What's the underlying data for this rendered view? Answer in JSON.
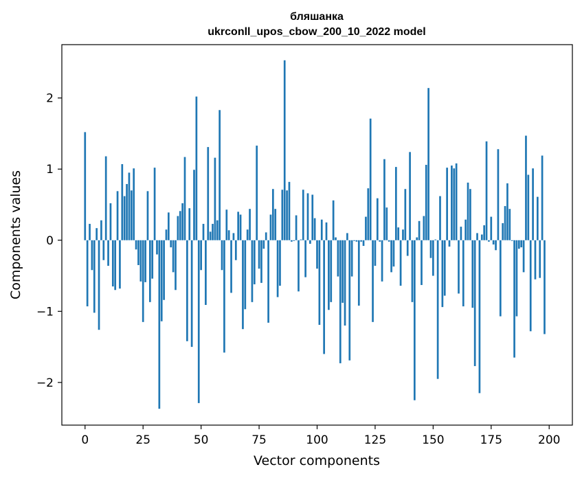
{
  "chart_data": {
    "type": "bar",
    "title": [
      "бляшанка",
      "ukrconll_upos_cbow_200_10_2022 model"
    ],
    "xlabel": "Vector components",
    "ylabel": "Components values",
    "xlim": [
      -10,
      210
    ],
    "ylim": [
      -2.6,
      2.75
    ],
    "xticks": [
      0,
      25,
      50,
      75,
      100,
      125,
      150,
      175,
      200
    ],
    "yticks": [
      -2,
      -1,
      0,
      1,
      2
    ],
    "bar_color": "#1f77b4",
    "grid": false,
    "values": [
      1.52,
      -0.93,
      0.23,
      -0.42,
      -1.02,
      0.17,
      -1.26,
      0.28,
      -0.28,
      1.18,
      -0.36,
      0.52,
      -0.65,
      -0.7,
      0.69,
      -0.68,
      1.07,
      0.62,
      0.79,
      0.95,
      0.7,
      1.01,
      -0.13,
      -0.35,
      -0.58,
      -1.15,
      -0.59,
      0.69,
      -0.87,
      -0.54,
      1.02,
      -0.2,
      -2.37,
      -1.14,
      -0.84,
      0.15,
      0.39,
      -0.1,
      -0.45,
      -0.7,
      0.34,
      0.41,
      0.52,
      1.17,
      -1.42,
      0.45,
      -1.5,
      0.99,
      2.02,
      -2.29,
      -0.42,
      0.23,
      -0.91,
      1.31,
      0.12,
      0.23,
      1.16,
      0.28,
      1.83,
      -0.42,
      -1.58,
      0.43,
      0.14,
      -0.74,
      0.1,
      -0.28,
      0.4,
      0.36,
      -1.25,
      -0.97,
      0.15,
      0.44,
      -0.87,
      -0.62,
      1.33,
      -0.4,
      -0.6,
      -0.12,
      0.11,
      -1.16,
      0.36,
      0.72,
      0.44,
      -0.8,
      -0.64,
      0.71,
      2.53,
      0.7,
      0.82,
      -0.02,
      -0.01,
      0.35,
      -0.72,
      0.01,
      0.71,
      -0.52,
      0.66,
      -0.05,
      0.64,
      0.31,
      -0.4,
      -1.19,
      0.29,
      -1.6,
      0.25,
      -0.98,
      -0.87,
      0.56,
      0.04,
      -0.51,
      -1.73,
      -0.88,
      -1.2,
      0.1,
      -1.69,
      -0.51,
      -0.01,
      -0.02,
      -0.92,
      -0.02,
      -0.08,
      0.33,
      0.73,
      1.71,
      -1.15,
      -0.36,
      0.59,
      -0.02,
      -0.58,
      1.14,
      0.46,
      -0.02,
      -0.45,
      -0.37,
      1.03,
      0.18,
      -0.64,
      0.15,
      0.72,
      -0.22,
      1.24,
      -0.87,
      -2.25,
      0.04,
      0.27,
      -0.63,
      0.34,
      1.06,
      2.14,
      -0.25,
      -0.5,
      0.01,
      -1.95,
      0.62,
      -0.94,
      -0.78,
      1.02,
      -0.09,
      1.05,
      1.01,
      1.08,
      -0.75,
      0.19,
      -0.93,
      0.29,
      0.81,
      0.72,
      -0.95,
      -1.77,
      0.1,
      -2.15,
      0.08,
      0.21,
      1.39,
      -0.02,
      0.33,
      -0.06,
      -0.14,
      1.28,
      -1.07,
      0.24,
      0.48,
      0.8,
      0.44,
      -0.01,
      -1.65,
      -1.07,
      -0.12,
      -0.1,
      -0.45,
      1.47,
      0.92,
      -1.28,
      1.01,
      -0.55,
      0.61,
      -0.53,
      1.19,
      -1.32
    ]
  }
}
